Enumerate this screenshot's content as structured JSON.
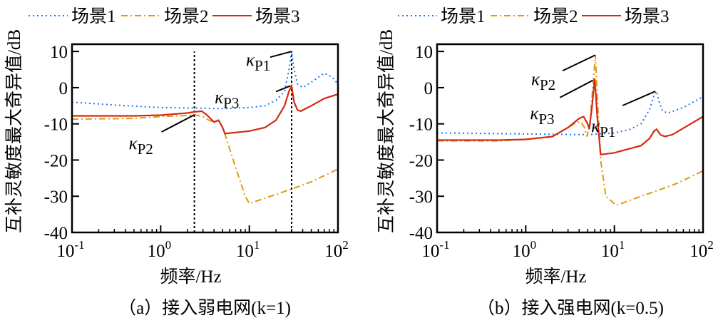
{
  "legend": [
    {
      "name": "场景1",
      "color": "#1f77f0",
      "style": "dotted"
    },
    {
      "name": "场景2",
      "color": "#e09a10",
      "style": "dashdot"
    },
    {
      "name": "场景3",
      "color": "#d42a10",
      "style": "solid"
    }
  ],
  "chart_data": [
    {
      "type": "line",
      "caption": "（a）接入弱电网(k=1)",
      "xlabel": "频率/Hz",
      "ylabel": "互补灵敏度最大奇异值/dB",
      "xscale": "log",
      "xlim": [
        0.1,
        100
      ],
      "ylim": [
        -40,
        12
      ],
      "xticks": [
        {
          "base": "10",
          "exp": "-1",
          "v": 0.1
        },
        {
          "base": "10",
          "exp": "0",
          "v": 1
        },
        {
          "base": "10",
          "exp": "1",
          "v": 10
        },
        {
          "base": "10",
          "exp": "2",
          "v": 100
        }
      ],
      "yticks": [
        10,
        0,
        -10,
        -20,
        -30,
        -40
      ],
      "vlines": [
        2.4,
        30
      ],
      "series": [
        {
          "name": "场景1",
          "x": [
            0.1,
            0.3,
            1,
            2,
            5,
            10,
            15,
            20,
            25,
            28,
            30,
            32,
            35,
            40,
            50,
            70,
            85,
            100
          ],
          "y": [
            -4,
            -4.8,
            -5.5,
            -5.6,
            -5.8,
            -5.5,
            -5,
            -3.5,
            -1,
            5,
            10,
            5,
            1,
            0,
            1.5,
            4,
            3,
            1
          ]
        },
        {
          "name": "场景2",
          "x": [
            0.1,
            0.5,
            1,
            2,
            2.4,
            3,
            3.5,
            4,
            4.5,
            5,
            5.5,
            7,
            9,
            10,
            20,
            30,
            50,
            100
          ],
          "y": [
            -8.7,
            -8.5,
            -8,
            -7.7,
            -7.5,
            -8,
            -9,
            -9.5,
            -9,
            -11,
            -14,
            -22,
            -30,
            -32,
            -29.5,
            -28,
            -26,
            -22.5
          ]
        },
        {
          "name": "场景3",
          "x": [
            0.1,
            0.5,
            1,
            2,
            2.4,
            2.9,
            3.3,
            4,
            4.5,
            5,
            5.3,
            10,
            15,
            20,
            25,
            28,
            30,
            32,
            35,
            38,
            50,
            70,
            100
          ],
          "y": [
            -7.8,
            -7.8,
            -7.6,
            -7,
            -6.7,
            -6.5,
            -7.5,
            -9.5,
            -9,
            -11,
            -12.7,
            -12,
            -11,
            -9,
            -5,
            -1,
            0.5,
            -4,
            -6.2,
            -6.5,
            -5,
            -3,
            -1.8
          ]
        }
      ],
      "annotations": [
        {
          "symbol": "κ",
          "sub": "P1",
          "x": 30,
          "y": 10
        },
        {
          "symbol": "κ",
          "sub": "P3",
          "x": 29,
          "y": 0.5
        },
        {
          "symbol": "κ",
          "sub": "P2",
          "x": 2.4,
          "y": -7.5
        }
      ]
    },
    {
      "type": "line",
      "caption": "（b）接入强电网(k=0.5)",
      "xlabel": "频率/Hz",
      "ylabel": "互补灵敏度最大奇异值/dB",
      "xscale": "log",
      "xlim": [
        0.1,
        100
      ],
      "ylim": [
        -40,
        12
      ],
      "xticks": [
        {
          "base": "10",
          "exp": "-1",
          "v": 0.1
        },
        {
          "base": "10",
          "exp": "0",
          "v": 1
        },
        {
          "base": "10",
          "exp": "1",
          "v": 10
        },
        {
          "base": "10",
          "exp": "2",
          "v": 100
        }
      ],
      "yticks": [
        10,
        0,
        -10,
        -20,
        -30,
        -40
      ],
      "vlines": [],
      "series": [
        {
          "name": "场景1",
          "x": [
            0.1,
            0.5,
            1,
            5,
            10,
            15,
            20,
            25,
            28,
            30,
            32,
            35,
            40,
            60,
            100
          ],
          "y": [
            -12.5,
            -12.7,
            -12.8,
            -13,
            -12.5,
            -11.5,
            -10,
            -6,
            -2,
            -1,
            -4,
            -6.5,
            -7,
            -5.5,
            -2.5
          ]
        },
        {
          "name": "场景2",
          "x": [
            0.1,
            0.5,
            1,
            2,
            3,
            3.8,
            4.2,
            4.6,
            4.9,
            5.3,
            5.7,
            6.1,
            6.5,
            7,
            8,
            10.5,
            20,
            30,
            50,
            100
          ],
          "y": [
            -14.7,
            -14.7,
            -14.3,
            -13.5,
            -11,
            -9.5,
            -9.5,
            -11,
            -13.5,
            -10,
            0,
            9,
            -5,
            -20,
            -30,
            -32.5,
            -30,
            -28.5,
            -26.5,
            -23
          ]
        },
        {
          "name": "场景3",
          "x": [
            0.1,
            0.5,
            1,
            2,
            3,
            4,
            4.5,
            5,
            5.2,
            5.6,
            6,
            6.4,
            7,
            10,
            20,
            25,
            28,
            30,
            33,
            37,
            45,
            100
          ],
          "y": [
            -14.5,
            -14.5,
            -14.3,
            -13.5,
            -11,
            -8.5,
            -8,
            -10,
            -11.5,
            -5,
            2.5,
            -8,
            -18.5,
            -18,
            -16,
            -14,
            -12,
            -11.5,
            -13,
            -13.5,
            -13,
            -8
          ]
        }
      ],
      "annotations": [
        {
          "symbol": "κ",
          "sub": "P2",
          "x": 6.1,
          "y": 9
        },
        {
          "symbol": "κ",
          "sub": "P3",
          "x": 5.7,
          "y": 2
        },
        {
          "symbol": "κ",
          "sub": "P1",
          "x": 29,
          "y": -1
        }
      ]
    }
  ]
}
